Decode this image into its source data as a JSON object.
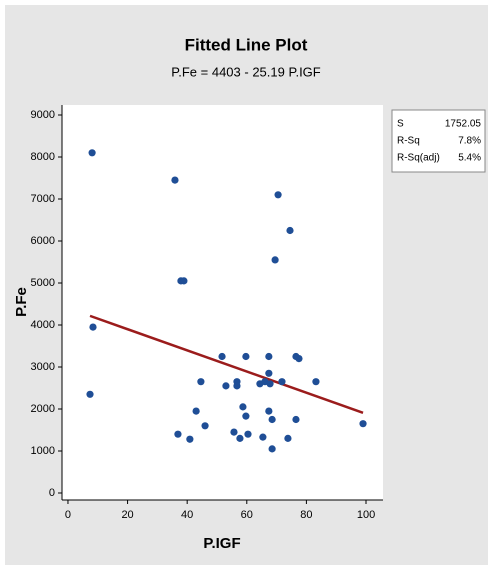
{
  "chart_data": {
    "type": "scatter",
    "title": "Fitted Line Plot",
    "subtitle": "P.Fe = 4403 - 25.19 P.IGF",
    "x_label": "P.IGF",
    "y_label": "P.Fe",
    "xlim": [
      -2,
      105.7
    ],
    "ylim": [
      -167,
      9238
    ],
    "xticks": [
      0,
      20,
      40,
      60,
      80,
      100
    ],
    "yticks": [
      0,
      1000,
      2000,
      3000,
      4000,
      5000,
      6000,
      7000,
      8000,
      9000
    ],
    "series": [
      {
        "name": "P.Fe",
        "color": "#1f4e96",
        "x": [
          8.1,
          8.4,
          7.4,
          35.9,
          37.9,
          38.9,
          36.9,
          40.9,
          43,
          44.6,
          46,
          51.7,
          53,
          55.7,
          56.7,
          56.7,
          57.7,
          58.7,
          59.7,
          59.7,
          60.4,
          65.4,
          64.4,
          66.1,
          67.4,
          67.4,
          67.8,
          67.4,
          68.5,
          68.5,
          69.5,
          70.5,
          71.8,
          73.8,
          74.5,
          76.5,
          77.5,
          76.5,
          83.2,
          99
        ],
        "values": [
          8100,
          3950,
          2350,
          7450,
          5050,
          5050,
          1400,
          1280,
          1950,
          2650,
          1600,
          3250,
          2550,
          1450,
          2650,
          2550,
          1300,
          2050,
          1830,
          3250,
          1400,
          1330,
          2600,
          2650,
          3250,
          2850,
          2600,
          1950,
          1750,
          1050,
          5550,
          7100,
          2650,
          1300,
          6250,
          3250,
          3200,
          1750,
          2650,
          1650
        ]
      }
    ],
    "fit_line": {
      "color": "#9b1c1c",
      "x": [
        7.4,
        99
      ],
      "values": [
        4217,
        1909
      ]
    },
    "stats": {
      "rows": [
        [
          "S",
          "1752.05"
        ],
        [
          "R-Sq",
          "7.8%"
        ],
        [
          "R-Sq(adj)",
          "5.4%"
        ]
      ]
    }
  }
}
